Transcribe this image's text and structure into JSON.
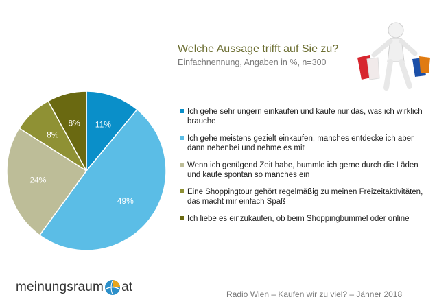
{
  "title": "Welche Aussage trifft auf Sie zu?",
  "subtitle": "Einfachnennung, Angaben in %, n=300",
  "footer": "Radio Wien – Kaufen wir zu viel? – Jänner 2018",
  "logo": {
    "left": "meinungsraum",
    "right": "at"
  },
  "colors": {
    "s1": "#0a8fc9",
    "s2": "#5bbde6",
    "s3": "#bdbd98",
    "s4": "#8f9134",
    "s5": "#6a6911"
  },
  "chart_data": {
    "type": "pie",
    "title": "Welche Aussage trifft auf Sie zu?",
    "legend_position": "right",
    "slices": [
      {
        "label": "Ich gehe sehr ungern einkaufen und kaufe nur das, was ich wirklich brauche",
        "value": 11,
        "display": "11%",
        "color": "#0a8fc9"
      },
      {
        "label": "Ich gehe meistens gezielt einkaufen, manches entdecke ich aber dann nebenbei und nehme es mit",
        "value": 49,
        "display": "49%",
        "color": "#5bbde6"
      },
      {
        "label": "Wenn ich genügend Zeit habe, bummle ich gerne durch die Läden und kaufe spontan so manches ein",
        "value": 24,
        "display": "24%",
        "color": "#bdbd98"
      },
      {
        "label": "Eine Shoppingtour gehört regelmäßig zu meinen Freizeitaktivitäten, das macht mir einfach Spaß",
        "value": 8,
        "display": "8%",
        "color": "#8f9134"
      },
      {
        "label": "Ich liebe es einzukaufen, ob beim Shoppingbummel oder online",
        "value": 8,
        "display": "8%",
        "color": "#6a6911"
      }
    ]
  }
}
